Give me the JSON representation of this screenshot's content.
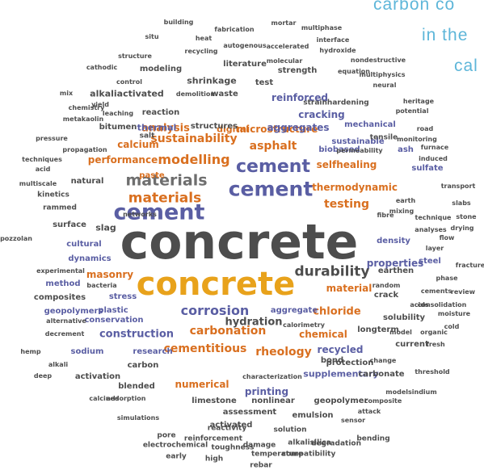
{
  "caption": {
    "line1": "carbon co",
    "line2": "in the",
    "line3": "cal"
  },
  "colors": {
    "dark": "#4d4d4d",
    "gold": "#e8a21b",
    "purple": "#5a5ea3",
    "orange": "#d96f1f",
    "green": "#4aa55a",
    "caption": "#5eb6d9"
  },
  "words": [
    "concrete",
    "cement",
    "materials",
    "durability",
    "corrosion",
    "modelling",
    "carbonation",
    "rheology",
    "cementitious",
    "testing",
    "sustainability",
    "asphalt",
    "analysis",
    "chloride",
    "hydration",
    "construction",
    "thermodynamic",
    "selfhealing",
    "microstructure",
    "aggregates",
    "reinforced",
    "cracking",
    "calcium",
    "numerical",
    "recycled",
    "chemical",
    "masonry",
    "performance",
    "properties",
    "material",
    "printing",
    "supplementary",
    "slag",
    "thermal",
    "alkaliactivated",
    "shrinkage",
    "digital",
    "bitumen",
    "reaction",
    "structures",
    "test",
    "strength",
    "waste",
    "paste",
    "sustainable",
    "mechanical",
    "biobased",
    "ash",
    "sulfate",
    "density",
    "steel",
    "cultural",
    "dynamics",
    "surface",
    "method",
    "composites",
    "geopolymers",
    "plastic",
    "stress",
    "conservation",
    "research",
    "sodium",
    "carbon",
    "activation",
    "blended",
    "limestone",
    "assessment",
    "nonlinear",
    "geopolymer",
    "emulsion",
    "protection",
    "carbonate",
    "longterm",
    "solubility",
    "current",
    "earthen",
    "crack",
    "bond",
    "activated",
    "reactivity",
    "solution",
    "pore",
    "electrochemical",
    "reinforcement",
    "toughness",
    "damage",
    "temperature",
    "compatibility",
    "early",
    "high",
    "rebar",
    "alkalisilica",
    "degradation",
    "bending",
    "simulations",
    "sensor",
    "attack",
    "composite",
    "modelsindium",
    "threshold",
    "calcined",
    "adsorption",
    "characterization",
    "change",
    "fresh",
    "cold",
    "model",
    "organic",
    "moisture",
    "consolidation",
    "acids",
    "review",
    "cements",
    "random",
    "phase",
    "fracture",
    "layer",
    "flow",
    "analyses",
    "drying",
    "mixing",
    "technique",
    "stone",
    "slabs",
    "earth",
    "fibre",
    "transport",
    "induced",
    "furnace",
    "acid",
    "techniques",
    "multiscale",
    "natural",
    "kinetics",
    "rammed",
    "networks",
    "pozzolan",
    "experimental",
    "bacteria",
    "alternative",
    "decrement",
    "hemp",
    "alkali",
    "deep",
    "pressure",
    "propagation",
    "chemistry",
    "metakaolin",
    "leaching",
    "mix",
    "yield",
    "control",
    "cathodic",
    "structure",
    "situ",
    "building",
    "fabrication",
    "mortar",
    "multiphase",
    "heat",
    "interface",
    "recycling",
    "autogenous",
    "accelerated",
    "hydroxide",
    "molecular",
    "nondestructive",
    "literature",
    "modeling",
    "equation",
    "multiphysics",
    "neural",
    "demolition",
    "strainhardening",
    "heritage",
    "potential",
    "road",
    "tensile",
    "monitoring",
    "salt",
    "permeability",
    "aggregate",
    "calorimetry",
    "dissolution",
    "low",
    "pervious",
    "blast",
    "life",
    "fly",
    "ice"
  ]
}
